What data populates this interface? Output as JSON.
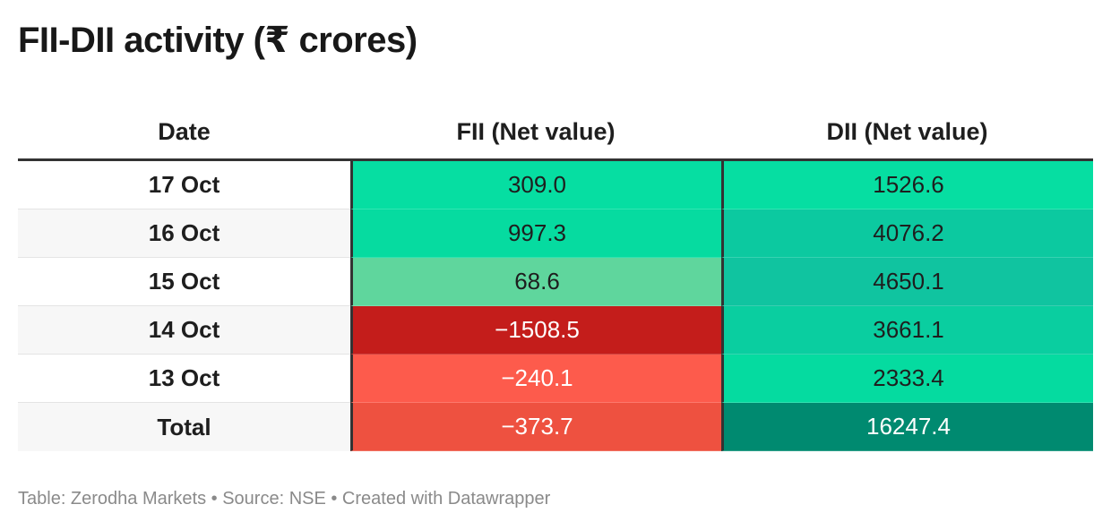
{
  "title": "FII-DII activity (₹ crores)",
  "headers": {
    "date": "Date",
    "fii": "FII (Net value)",
    "dii": "DII (Net value)"
  },
  "rows": [
    {
      "date": "17 Oct",
      "fii": "309.0",
      "dii": "1526.6",
      "fii_color": "#06dea2",
      "dii_color": "#06dea2",
      "fii_text": "#1e1e1e",
      "dii_text": "#1e1e1e"
    },
    {
      "date": "16 Oct",
      "fii": "997.3",
      "dii": "4076.2",
      "fii_color": "#06dba0",
      "dii_color": "#0cc9a0",
      "fii_text": "#1e1e1e",
      "dii_text": "#1e1e1e"
    },
    {
      "date": "15 Oct",
      "fii": "68.6",
      "dii": "4650.1",
      "fii_color": "#5fd69d",
      "dii_color": "#10c4a0",
      "fii_text": "#1e1e1e",
      "dii_text": "#1e1e1e"
    },
    {
      "date": "14 Oct",
      "fii": "−1508.5",
      "dii": "3661.1",
      "fii_color": "#c41d1b",
      "dii_color": "#0acea0",
      "fii_text": "#ffffff",
      "dii_text": "#1e1e1e"
    },
    {
      "date": "13 Oct",
      "fii": "−240.1",
      "dii": "2333.4",
      "fii_color": "#fd5b4c",
      "dii_color": "#05dba0",
      "fii_text": "#ffffff",
      "dii_text": "#1e1e1e"
    },
    {
      "date": "Total",
      "fii": "−373.7",
      "dii": "16247.4",
      "fii_color": "#ee5140",
      "dii_color": "#008a70",
      "fii_text": "#ffffff",
      "dii_text": "#ffffff"
    }
  ],
  "footer": "Table: Zerodha Markets • Source: NSE • Created with Datawrapper",
  "chart_data": {
    "type": "table",
    "title": "FII-DII activity (₹ crores)",
    "columns": [
      "Date",
      "FII (Net value)",
      "DII (Net value)"
    ],
    "categories": [
      "17 Oct",
      "16 Oct",
      "15 Oct",
      "14 Oct",
      "13 Oct",
      "Total"
    ],
    "series": [
      {
        "name": "FII (Net value)",
        "values": [
          309.0,
          997.3,
          68.6,
          -1508.5,
          -240.1,
          -373.7
        ]
      },
      {
        "name": "DII (Net value)",
        "values": [
          1526.6,
          4076.2,
          4650.1,
          3661.1,
          2333.4,
          16247.4
        ]
      }
    ]
  }
}
